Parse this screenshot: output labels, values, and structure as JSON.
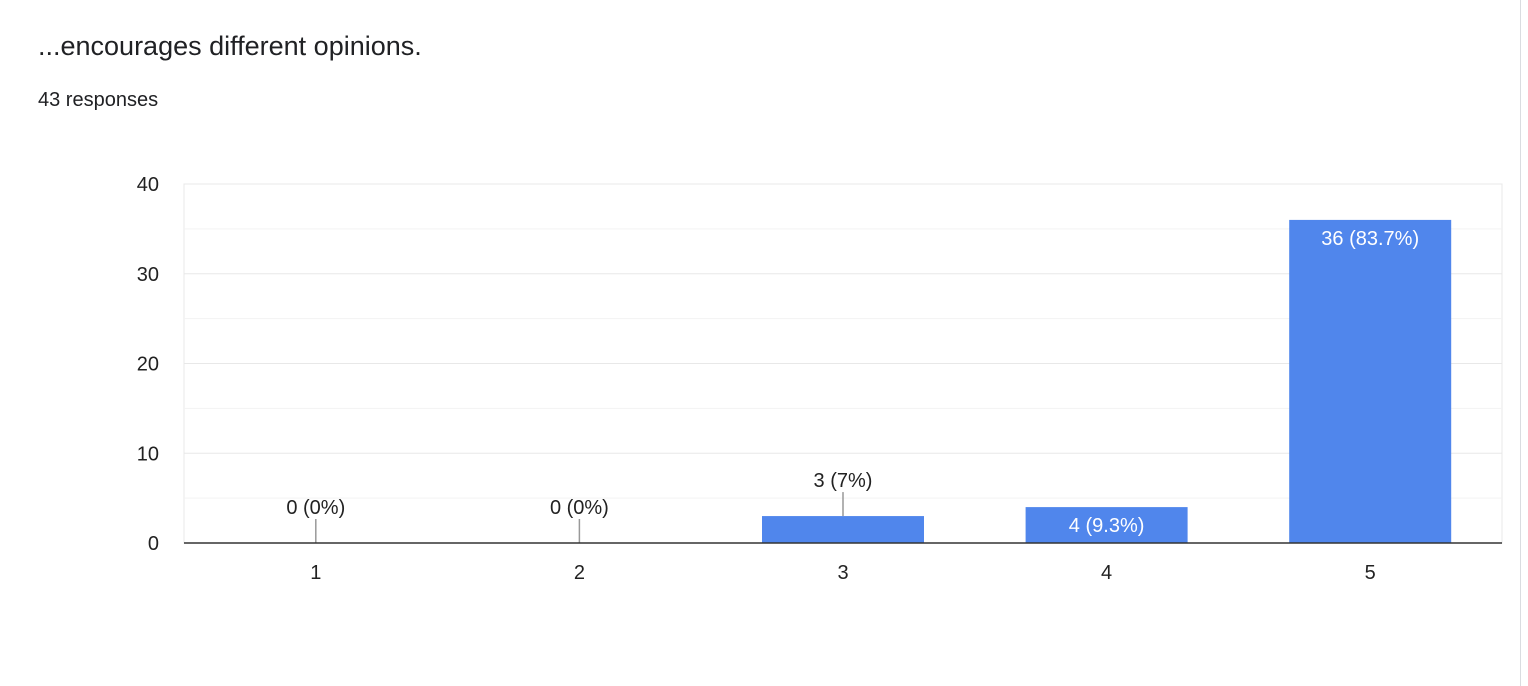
{
  "question": {
    "title": "...encourages different opinions.",
    "responses_text": "43 responses"
  },
  "colors": {
    "bar": "#5086EC",
    "gridline": "#e8e8e8",
    "minor_gridline": "#f3f3f3",
    "axis": "#333333",
    "tick_text": "#222222",
    "label_inside": "#ffffff",
    "label_outside": "#222222"
  },
  "chart_data": {
    "type": "bar",
    "categories": [
      "1",
      "2",
      "3",
      "4",
      "5"
    ],
    "values": [
      0,
      0,
      3,
      4,
      36
    ],
    "labels": [
      "0 (0%)",
      "0 (0%)",
      "3 (7%)",
      "4 (9.3%)",
      "36 (83.7%)"
    ],
    "y_ticks": [
      0,
      10,
      20,
      30,
      40
    ],
    "ylim": [
      0,
      40
    ],
    "title": "",
    "xlabel": "",
    "ylabel": "",
    "grid": true,
    "legend": "none"
  }
}
